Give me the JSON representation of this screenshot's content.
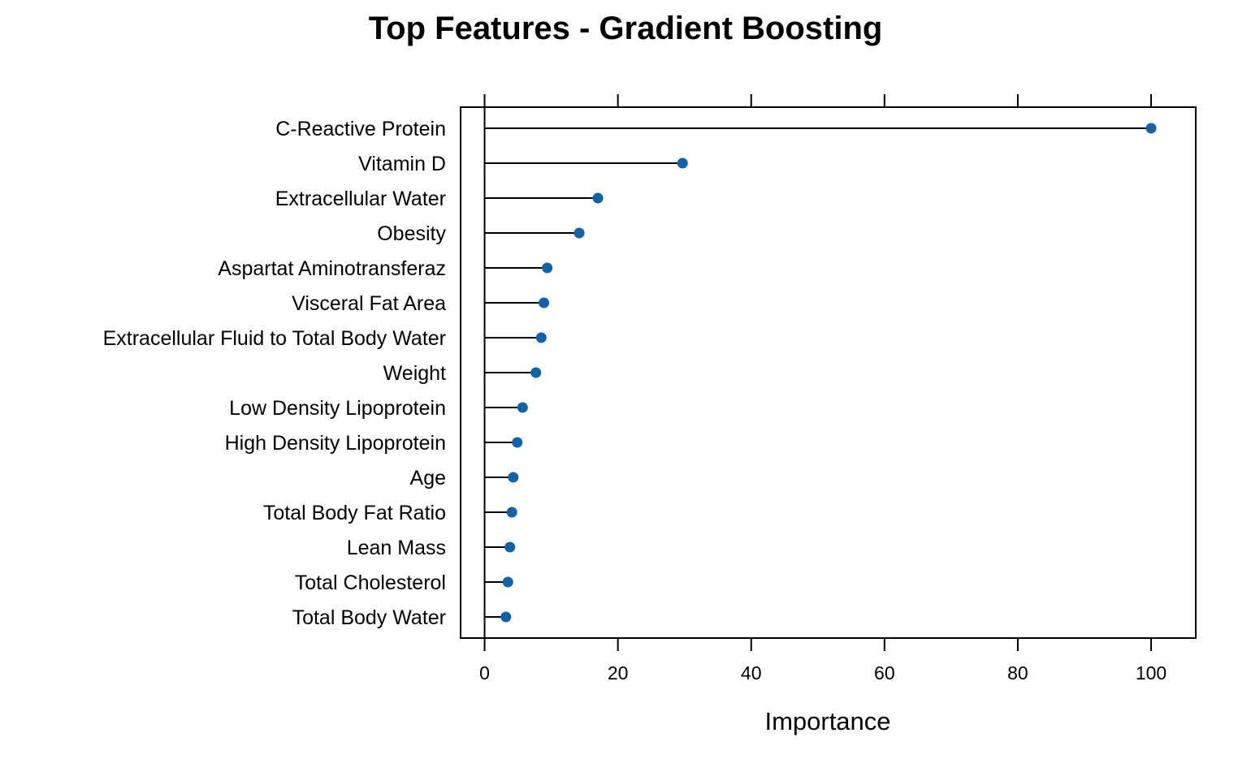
{
  "chart_data": {
    "type": "dot",
    "title": "Top Features - Gradient Boosting",
    "xlabel": "Importance",
    "ylabel": "",
    "xlim": [
      -3.6,
      106.7
    ],
    "x_ticks": [
      0,
      20,
      40,
      60,
      80,
      100
    ],
    "tick_labels": [
      "0",
      "20",
      "40",
      "60",
      "80",
      "100"
    ],
    "categories": [
      "C-Reactive Protein",
      "Vitamin D",
      "Extracellular Water",
      "Obesity",
      "Aspartat Aminotransferaz",
      "Visceral Fat Area",
      "Extracellular Fluid to Total Body Water",
      "Weight",
      "Low Density Lipoprotein",
      "High Density Lipoprotein",
      "Age",
      "Total Body Fat Ratio",
      "Lean Mass",
      "Total Cholesterol",
      "Total Body Water"
    ],
    "values": [
      100,
      29.7,
      17.0,
      14.2,
      9.4,
      8.9,
      8.5,
      7.7,
      5.7,
      4.9,
      4.3,
      4.1,
      3.8,
      3.5,
      3.2
    ],
    "point_color": "#1262a8",
    "line_color": "#000000",
    "grid": false,
    "legend": "none"
  }
}
